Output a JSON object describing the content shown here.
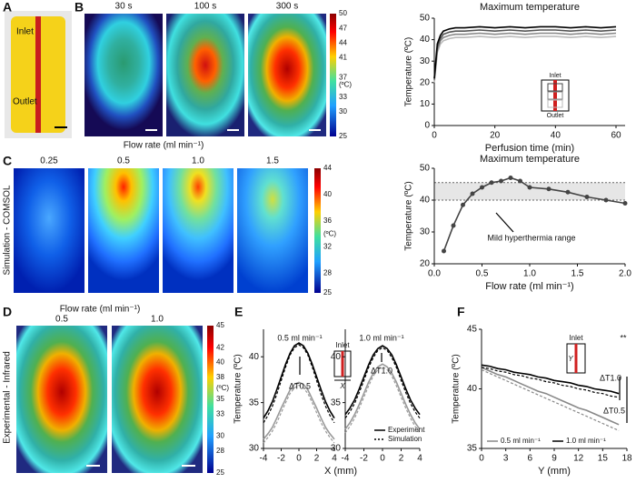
{
  "panels": {
    "labels": [
      "A",
      "B",
      "C",
      "D",
      "E",
      "F"
    ],
    "a": {
      "inlet": "Inlet",
      "outlet": "Outlet"
    },
    "b": {
      "times": [
        "30 s",
        "100 s",
        "300 s"
      ],
      "colorbar": {
        "lim": [
          25,
          50
        ],
        "ticks": [
          50,
          47,
          44,
          41,
          37,
          33,
          30,
          25
        ],
        "unit": "(ºC)"
      },
      "inset": {
        "inlet": "Inlet",
        "outlet": "Outlet"
      }
    },
    "c": {
      "heading": "Flow rate (ml min⁻¹)",
      "rates": [
        "0.25",
        "0.5",
        "1.0",
        "1.5"
      ],
      "side": "Simulation - COMSOL",
      "colorbar": {
        "lim": [
          25,
          44
        ],
        "ticks": [
          44,
          40,
          36,
          32,
          28,
          25
        ],
        "unit": "(ºC)"
      }
    },
    "d": {
      "heading": "Flow rate (ml min⁻¹)",
      "rates": [
        "0.5",
        "1.0"
      ],
      "side": "Experimental - Infrared",
      "colorbar": {
        "lim": [
          25,
          45
        ],
        "ticks": [
          45,
          42,
          40,
          38,
          35,
          33,
          30,
          28,
          25
        ],
        "unit": "(ºC)"
      }
    },
    "e": {
      "inset": {
        "inlet": "Inlet",
        "axis": "X"
      }
    },
    "f": {
      "inset": {
        "inlet": "Inlet",
        "axis": "Y"
      }
    }
  },
  "chart_data": [
    {
      "type": "line",
      "title": "Maximum temperature",
      "xlabel": "Perfusion time (min)",
      "ylabel": "Temperature (ºC)",
      "xlim": [
        0,
        63
      ],
      "xticks": [
        0,
        20,
        40,
        60
      ],
      "ylim": [
        0,
        50
      ],
      "yticks": [
        0,
        10,
        20,
        30,
        40,
        50
      ],
      "x": [
        0,
        1,
        2,
        3,
        4,
        5,
        7,
        10,
        15,
        20,
        25,
        30,
        35,
        40,
        45,
        50,
        55,
        60
      ],
      "series": [
        {
          "color": "#bbbbbb",
          "values": [
            20,
            34,
            38,
            39.5,
            40,
            40.5,
            41,
            41,
            41.5,
            41,
            41.5,
            41,
            41.5,
            41.5,
            41,
            41.5,
            41,
            41.5
          ]
        },
        {
          "color": "#888888",
          "values": [
            21,
            35,
            39.5,
            41,
            41.5,
            42,
            42.5,
            42.5,
            43,
            42.5,
            43,
            42.5,
            43,
            43,
            42.5,
            43,
            42.5,
            43
          ]
        },
        {
          "color": "#555555",
          "values": [
            21.5,
            36.5,
            40.5,
            42.5,
            43,
            43.5,
            44,
            44,
            44.5,
            44,
            44.5,
            44,
            44.5,
            44.5,
            44,
            44.5,
            44,
            44.5
          ]
        },
        {
          "color": "#000000",
          "values": [
            22,
            38,
            42,
            44,
            44.5,
            45,
            45.5,
            45.5,
            46,
            45.5,
            46,
            45.5,
            46,
            46,
            45.5,
            46,
            45.5,
            46
          ]
        }
      ]
    },
    {
      "type": "line",
      "title": "Maximum temperature",
      "xlabel": "Flow rate (ml min⁻¹)",
      "ylabel": "Temperature (ºC)",
      "xlim": [
        0,
        2
      ],
      "xticks": [
        {
          "value": 0,
          "label": "0.0"
        },
        0.5,
        {
          "value": 1,
          "label": "1.0"
        },
        1.5,
        {
          "value": 2,
          "label": "2.0"
        }
      ],
      "ylim": [
        20,
        50
      ],
      "yticks": [
        20,
        30,
        40,
        50
      ],
      "band": [
        40,
        45.5
      ],
      "markers": true,
      "annotations": [
        "Mild hyperthermia range"
      ],
      "x": [
        0.1,
        0.2,
        0.3,
        0.4,
        0.5,
        0.6,
        0.7,
        0.8,
        0.9,
        1.0,
        1.2,
        1.4,
        1.6,
        1.8,
        2.0
      ],
      "series": [
        {
          "color": "#444444",
          "values": [
            24,
            32,
            38.5,
            42,
            44,
            45.5,
            46,
            47,
            46,
            44,
            43.5,
            42.5,
            41,
            40,
            39
          ]
        }
      ]
    },
    {
      "type": "line",
      "xlabel": "X (mm)",
      "ylabel": "Temperature (ºC)",
      "xlim": [
        -4,
        4
      ],
      "xticks": [
        -4,
        -2,
        0,
        2,
        4
      ],
      "ylim": [
        30,
        43
      ],
      "yticks": [
        30,
        35,
        40
      ],
      "annotations": [
        "0.5 ml min⁻¹",
        "ΔT0.5"
      ],
      "x": [
        -4,
        -3.5,
        -3,
        -2.5,
        -2,
        -1.5,
        -1,
        -0.5,
        0,
        0.5,
        1,
        1.5,
        2,
        2.5,
        3,
        3.5,
        4
      ],
      "series": [
        {
          "color": "#000000",
          "values": [
            33.3,
            34.1,
            35.1,
            36.4,
            37.8,
            39.2,
            40.4,
            41.2,
            41.5,
            41.2,
            40.4,
            39.2,
            37.8,
            36.4,
            35.1,
            34.1,
            33.3
          ]
        },
        {
          "color": "#000000",
          "dash": true,
          "values": [
            32.8,
            33.6,
            34.6,
            35.9,
            37.4,
            38.9,
            40.2,
            41.0,
            41.3,
            41.0,
            40.2,
            38.9,
            37.4,
            35.9,
            34.6,
            33.6,
            32.8
          ]
        },
        {
          "color": "#999999",
          "values": [
            31.0,
            31.6,
            32.3,
            33.3,
            34.4,
            35.4,
            36.4,
            37.0,
            37.2,
            37.0,
            36.4,
            35.4,
            34.4,
            33.3,
            32.3,
            31.6,
            31.0
          ]
        },
        {
          "color": "#999999",
          "dash": true,
          "values": [
            30.6,
            31.2,
            31.9,
            32.8,
            33.9,
            35.0,
            36.0,
            36.6,
            36.9,
            36.6,
            36.0,
            35.0,
            33.9,
            32.8,
            31.9,
            31.2,
            30.6
          ]
        }
      ]
    },
    {
      "type": "line",
      "xlim": [
        -4,
        4
      ],
      "xticks": [
        -4,
        -2,
        0,
        2,
        4
      ],
      "ylim": [
        30,
        43
      ],
      "yticks": [
        30,
        35,
        40
      ],
      "annotations": [
        "1.0 ml min⁻¹",
        "ΔT1.0"
      ],
      "legend": "lower right",
      "x": [
        -4,
        -3.5,
        -3,
        -2.5,
        -2,
        -1.5,
        -1,
        -0.5,
        0,
        0.5,
        1,
        1.5,
        2,
        2.5,
        3,
        3.5,
        4
      ],
      "series": [
        {
          "name": "Experiment",
          "color": "#000000",
          "values": [
            33.7,
            34.4,
            35.3,
            36.5,
            37.8,
            39.1,
            40.2,
            40.9,
            41.2,
            40.9,
            40.2,
            39.1,
            37.8,
            36.5,
            35.3,
            34.4,
            33.7
          ]
        },
        {
          "name": "Simulation",
          "color": "#000000",
          "dash": true,
          "values": [
            33.3,
            34.0,
            34.9,
            36.1,
            37.4,
            38.8,
            39.9,
            40.7,
            41.0,
            40.7,
            39.9,
            38.8,
            37.4,
            36.1,
            34.9,
            34.0,
            33.3
          ]
        },
        {
          "color": "#999999",
          "values": [
            32.1,
            32.8,
            33.7,
            34.8,
            36.0,
            37.2,
            38.2,
            38.9,
            39.2,
            38.9,
            38.2,
            37.2,
            36.0,
            34.8,
            33.7,
            32.8,
            32.1
          ]
        },
        {
          "color": "#999999",
          "dash": true,
          "values": [
            31.7,
            32.4,
            33.3,
            34.4,
            35.6,
            36.8,
            37.9,
            38.6,
            38.9,
            38.6,
            37.9,
            36.8,
            35.6,
            34.4,
            33.3,
            32.4,
            31.7
          ]
        }
      ]
    },
    {
      "type": "line",
      "xlabel": "Y (mm)",
      "ylabel": "Temperature (ºC)",
      "xlim": [
        0,
        18
      ],
      "xticks": [
        0,
        3,
        6,
        9,
        12,
        15,
        18
      ],
      "ylim": [
        35,
        45
      ],
      "yticks": [
        35,
        40,
        45
      ],
      "annotations": [
        "**",
        "ΔT1.0",
        "ΔT0.5"
      ],
      "legend": "lower left",
      "x": [
        0,
        1,
        2,
        3,
        4,
        5,
        6,
        7,
        8,
        9,
        10,
        11,
        12,
        13,
        14,
        15,
        16,
        17
      ],
      "series": [
        {
          "name": "0.5 ml min⁻¹",
          "color": "#888888",
          "values": [
            41.8,
            41.5,
            41.2,
            41.0,
            40.7,
            40.4,
            40.1,
            39.8,
            39.6,
            39.3,
            39.0,
            38.7,
            38.4,
            38.2,
            37.9,
            37.6,
            37.3,
            37.0
          ]
        },
        {
          "color": "#888888",
          "dash": true,
          "values": [
            41.6,
            41.3,
            41.0,
            40.7,
            40.4,
            40.1,
            39.8,
            39.5,
            39.2,
            38.9,
            38.6,
            38.3,
            38.0,
            37.7,
            37.4,
            37.1,
            36.8,
            36.5
          ]
        },
        {
          "name": "1.0 ml min⁻¹",
          "color": "#000000",
          "values": [
            42.0,
            41.9,
            41.7,
            41.6,
            41.4,
            41.3,
            41.2,
            41.0,
            40.9,
            40.7,
            40.6,
            40.5,
            40.3,
            40.2,
            40.0,
            39.9,
            39.8,
            39.6
          ]
        },
        {
          "color": "#000000",
          "dash": true,
          "values": [
            41.8,
            41.7,
            41.5,
            41.4,
            41.2,
            41.1,
            40.9,
            40.8,
            40.6,
            40.5,
            40.3,
            40.2,
            40.0,
            39.9,
            39.7,
            39.6,
            39.4,
            39.3
          ]
        }
      ]
    }
  ]
}
